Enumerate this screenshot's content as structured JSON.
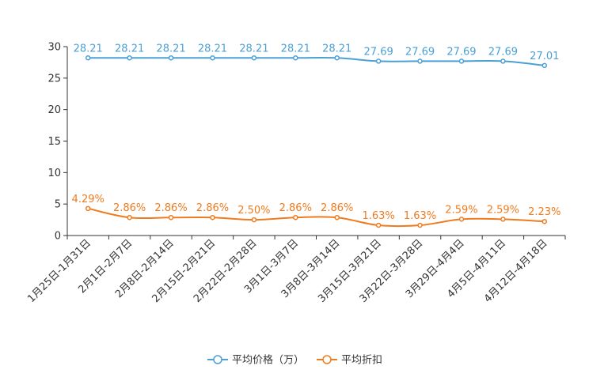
{
  "chart_data": {
    "type": "line",
    "title": "",
    "xlabel": "",
    "ylabel": "",
    "ylim": [
      0,
      30
    ],
    "yticks": [
      0,
      5,
      10,
      15,
      20,
      25,
      30
    ],
    "grid": false,
    "legend_position": "bottom-center",
    "categories": [
      "1月25日-1月31日",
      "2月1日-2月7日",
      "2月8日-2月14日",
      "2月15日-2月21日",
      "2月22日-2月28日",
      "3月1日-3月7日",
      "3月8日-3月14日",
      "3月15日-3月21日",
      "3月22日-3月28日",
      "3月29日-4月4日",
      "4月5日-4月11日",
      "4月12日-4月18日"
    ],
    "series": [
      {
        "name": "平均价格（万）",
        "color": "#4aa0d5",
        "values": [
          28.21,
          28.21,
          28.21,
          28.21,
          28.21,
          28.21,
          28.21,
          27.69,
          27.69,
          27.69,
          27.69,
          27.01
        ],
        "labels": [
          "28.21",
          "28.21",
          "28.21",
          "28.21",
          "28.21",
          "28.21",
          "28.21",
          "27.69",
          "27.69",
          "27.69",
          "27.69",
          "27.01"
        ]
      },
      {
        "name": "平均折扣",
        "color": "#f07b1e",
        "values": [
          4.29,
          2.86,
          2.86,
          2.86,
          2.5,
          2.86,
          2.86,
          1.63,
          1.63,
          2.59,
          2.59,
          2.23
        ],
        "labels": [
          "4.29%",
          "2.86%",
          "2.86%",
          "2.86%",
          "2.50%",
          "2.86%",
          "2.86%",
          "1.63%",
          "1.63%",
          "2.59%",
          "2.59%",
          "2.23%"
        ]
      }
    ]
  }
}
